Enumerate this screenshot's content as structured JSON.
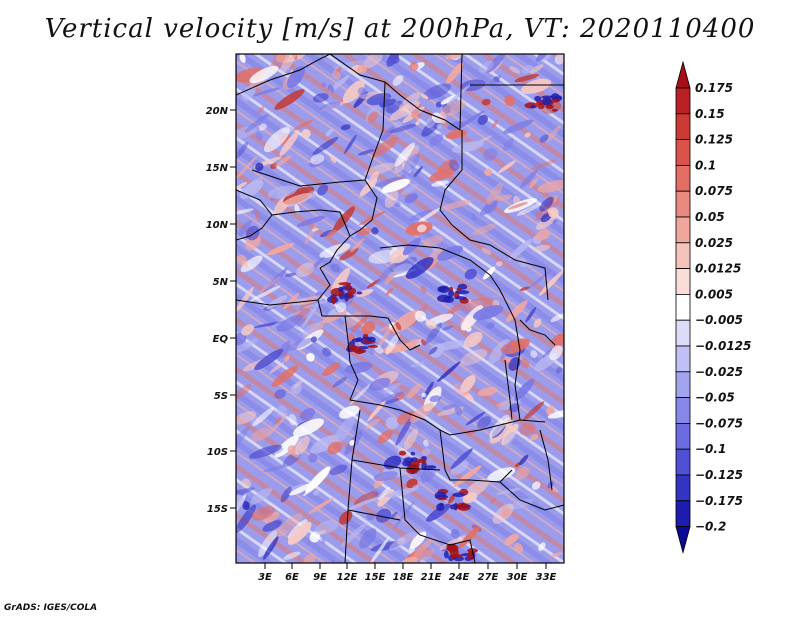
{
  "title": "Vertical velocity [m/s] at 200hPa, VT: 2020110400",
  "credit": "GrADS: IGES/COLA",
  "latitude_labels": [
    "20N",
    "15N",
    "10N",
    "5N",
    "EQ",
    "5S",
    "10S",
    "15S"
  ],
  "longitude_labels": [
    "3E",
    "6E",
    "9E",
    "12E",
    "15E",
    "18E",
    "21E",
    "24E",
    "27E",
    "30E",
    "33E"
  ],
  "colorbar": {
    "levels": [
      "0.175",
      "0.15",
      "0.125",
      "0.1",
      "0.075",
      "0.05",
      "0.025",
      "0.0125",
      "0.005",
      "−0.005",
      "−0.0125",
      "−0.025",
      "−0.05",
      "−0.075",
      "−0.1",
      "−0.125",
      "−0.175",
      "−0.2"
    ],
    "colors": [
      "#a50f15",
      "#bb2025",
      "#cc3a35",
      "#d9534b",
      "#e26e64",
      "#e88a80",
      "#f0a59d",
      "#f5c2bc",
      "#fadcd8",
      "#ffffff",
      "#dcdcf8",
      "#c0c0f4",
      "#a4a4ee",
      "#8888e8",
      "#6c6ce0",
      "#5050d4",
      "#3434c4",
      "#1c1cae",
      "#0a0a96"
    ]
  },
  "colors": {
    "positive": "#d9534b",
    "negative": "#6c6ce0",
    "border": "#000000"
  }
}
